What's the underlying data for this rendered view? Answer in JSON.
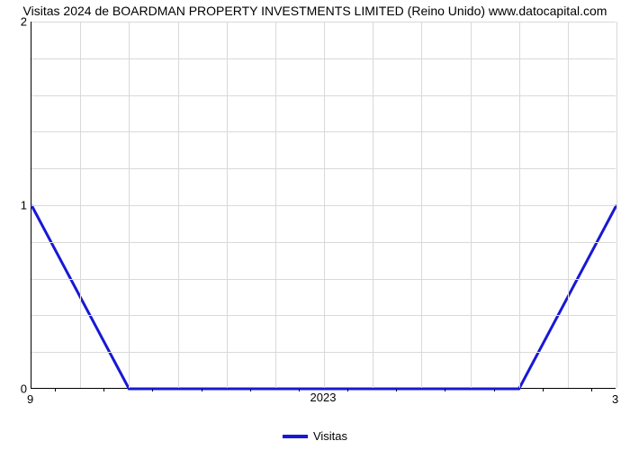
{
  "title": "Visitas 2024 de BOARDMAN PROPERTY INVESTMENTS LIMITED (Reino Unido) www.datocapital.com",
  "chart": {
    "type": "line",
    "background_color": "#ffffff",
    "grid_color": "#d9d9d9",
    "axis_color": "#000000",
    "line_color": "#1818d6",
    "line_width": 3,
    "title_fontsize": 14,
    "tick_fontsize": 13,
    "y": {
      "min": 0,
      "max": 2,
      "ticks": [
        0,
        1,
        2
      ],
      "minor_per_major": 5
    },
    "x": {
      "min": 0,
      "max": 12,
      "ticks": [
        6
      ],
      "tick_labels": [
        "2023"
      ],
      "minor_positions": [
        0.5,
        1.5,
        2.5,
        3.5,
        4.5,
        5.5,
        6.5,
        7.5,
        8.5,
        9.5,
        10.5,
        11.5
      ],
      "major_grid_positions": [
        1,
        2,
        3,
        4,
        5,
        6,
        7,
        8,
        9,
        10,
        11,
        12
      ],
      "corner_left": "9",
      "corner_right": "3"
    },
    "series": {
      "name": "Visitas",
      "points": [
        [
          0,
          1.0
        ],
        [
          2,
          0.0
        ],
        [
          10,
          0.0
        ],
        [
          12,
          1.0
        ]
      ]
    }
  },
  "legend": {
    "label": "Visitas"
  }
}
